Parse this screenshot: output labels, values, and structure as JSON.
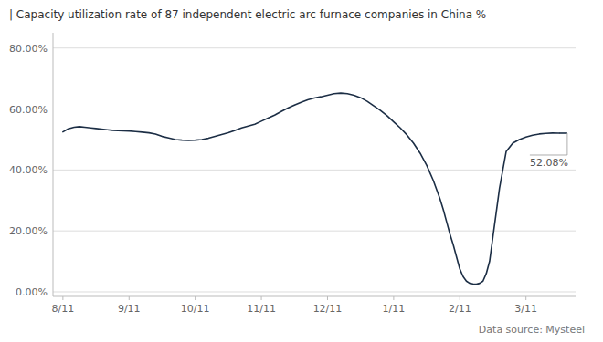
{
  "chart_data": {
    "type": "line",
    "title": "| Capacity utilization rate of 87 independent electric arc furnace companies in China %",
    "source": "Data source: Mysteel",
    "annotation": "52.08%",
    "color": "#1c2e45",
    "grid": true,
    "xlim": [
      -0.15,
      7.75
    ],
    "xticks": [
      {
        "value": 0,
        "label": "8/11"
      },
      {
        "value": 1,
        "label": "9/11"
      },
      {
        "value": 2,
        "label": "10/11"
      },
      {
        "value": 3,
        "label": "11/11"
      },
      {
        "value": 4,
        "label": "12/11"
      },
      {
        "value": 5,
        "label": "1/11"
      },
      {
        "value": 6,
        "label": "2/11"
      },
      {
        "value": 7,
        "label": "3/11"
      }
    ],
    "ylim": [
      -0.015,
      0.85
    ],
    "yticks": [
      {
        "value": 0.0,
        "label": "0.00%"
      },
      {
        "value": 0.2,
        "label": "20.00%"
      },
      {
        "value": 0.4,
        "label": "40.00%"
      },
      {
        "value": 0.6,
        "label": "60.00%"
      },
      {
        "value": 0.8,
        "label": "80.00%"
      }
    ],
    "x": [
      0.0,
      0.08,
      0.17,
      0.25,
      0.33,
      0.42,
      0.5,
      0.58,
      0.67,
      0.75,
      1.0,
      1.1,
      1.2,
      1.3,
      1.4,
      1.5,
      1.6,
      1.7,
      1.8,
      1.9,
      2.0,
      2.1,
      2.2,
      2.3,
      2.4,
      2.5,
      2.6,
      2.7,
      2.8,
      2.9,
      3.0,
      3.1,
      3.2,
      3.3,
      3.4,
      3.5,
      3.6,
      3.7,
      3.8,
      3.9,
      4.0,
      4.1,
      4.2,
      4.3,
      4.4,
      4.5,
      4.6,
      4.7,
      4.8,
      4.9,
      5.0,
      5.1,
      5.2,
      5.3,
      5.4,
      5.5,
      5.6,
      5.7,
      5.75,
      5.8,
      5.85,
      5.9,
      6.0,
      6.05,
      6.1,
      6.15,
      6.2,
      6.25,
      6.3,
      6.35,
      6.4,
      6.45,
      6.5,
      6.6,
      6.7,
      6.8,
      6.9,
      7.0,
      7.1,
      7.2,
      7.3,
      7.4,
      7.5
    ],
    "values": [
      0.525,
      0.535,
      0.54,
      0.542,
      0.54,
      0.538,
      0.536,
      0.534,
      0.532,
      0.53,
      0.528,
      0.526,
      0.524,
      0.522,
      0.518,
      0.51,
      0.505,
      0.5,
      0.498,
      0.497,
      0.498,
      0.5,
      0.504,
      0.51,
      0.516,
      0.522,
      0.53,
      0.538,
      0.544,
      0.55,
      0.56,
      0.57,
      0.58,
      0.592,
      0.603,
      0.613,
      0.622,
      0.63,
      0.636,
      0.64,
      0.645,
      0.65,
      0.652,
      0.65,
      0.645,
      0.637,
      0.625,
      0.61,
      0.595,
      0.578,
      0.558,
      0.538,
      0.515,
      0.488,
      0.455,
      0.415,
      0.365,
      0.305,
      0.27,
      0.23,
      0.19,
      0.155,
      0.075,
      0.05,
      0.035,
      0.028,
      0.026,
      0.025,
      0.028,
      0.035,
      0.06,
      0.1,
      0.18,
      0.34,
      0.46,
      0.488,
      0.5,
      0.508,
      0.514,
      0.518,
      0.52,
      0.521,
      0.5208
    ]
  }
}
